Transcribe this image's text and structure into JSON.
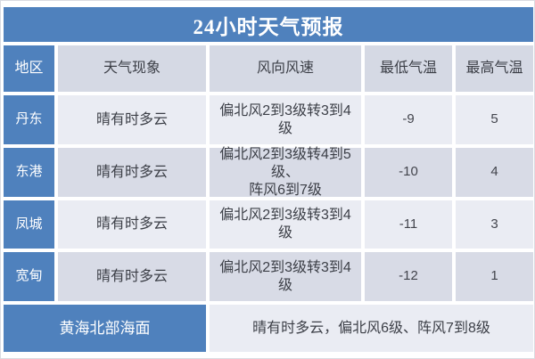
{
  "title": "24小时天气预报",
  "columns": [
    "地区",
    "天气现象",
    "风向风速",
    "最低气温",
    "最高气温"
  ],
  "rows": [
    {
      "region": "丹东",
      "weather": "晴有时多云",
      "wind": "偏北风2到3级转3到4级",
      "min": "-9",
      "max": "5"
    },
    {
      "region": "东港",
      "weather": "晴有时多云",
      "wind": "偏北风2到3级转4到5级、\n阵风6到7级",
      "min": "-10",
      "max": "4"
    },
    {
      "region": "凤城",
      "weather": "晴有时多云",
      "wind": "偏北风2到3级转3到4级",
      "min": "-11",
      "max": "3"
    },
    {
      "region": "宽甸",
      "weather": "晴有时多云",
      "wind": "偏北风2到3级转3到4级",
      "min": "-12",
      "max": "1"
    }
  ],
  "footer": {
    "region": "黄海北部海面",
    "forecast": "晴有时多云，偏北风6级、阵风7到8级"
  },
  "colors": {
    "accent_blue": "#4f81bd",
    "header_light": "#d5d9e4",
    "row_light": "#eaecf3",
    "row_dark": "#d8dbe6",
    "gap_white": "#ffffff",
    "text_dark": "#3c3f47",
    "text_white": "#ffffff"
  },
  "chart_data": {
    "type": "table",
    "title": "24小时天气预报",
    "columns": [
      "地区",
      "天气现象",
      "风向风速",
      "最低气温",
      "最高气温"
    ],
    "rows": [
      [
        "丹东",
        "晴有时多云",
        "偏北风2到3级转3到4级",
        -9,
        5
      ],
      [
        "东港",
        "晴有时多云",
        "偏北风2到3级转4到5级、阵风6到7级",
        -10,
        4
      ],
      [
        "凤城",
        "晴有时多云",
        "偏北风2到3级转3到4级",
        -11,
        3
      ],
      [
        "宽甸",
        "晴有时多云",
        "偏北风2到3级转3到4级",
        -12,
        1
      ]
    ],
    "footer_row": [
      "黄海北部海面",
      "晴有时多云，偏北风6级、阵风7到8级"
    ]
  }
}
